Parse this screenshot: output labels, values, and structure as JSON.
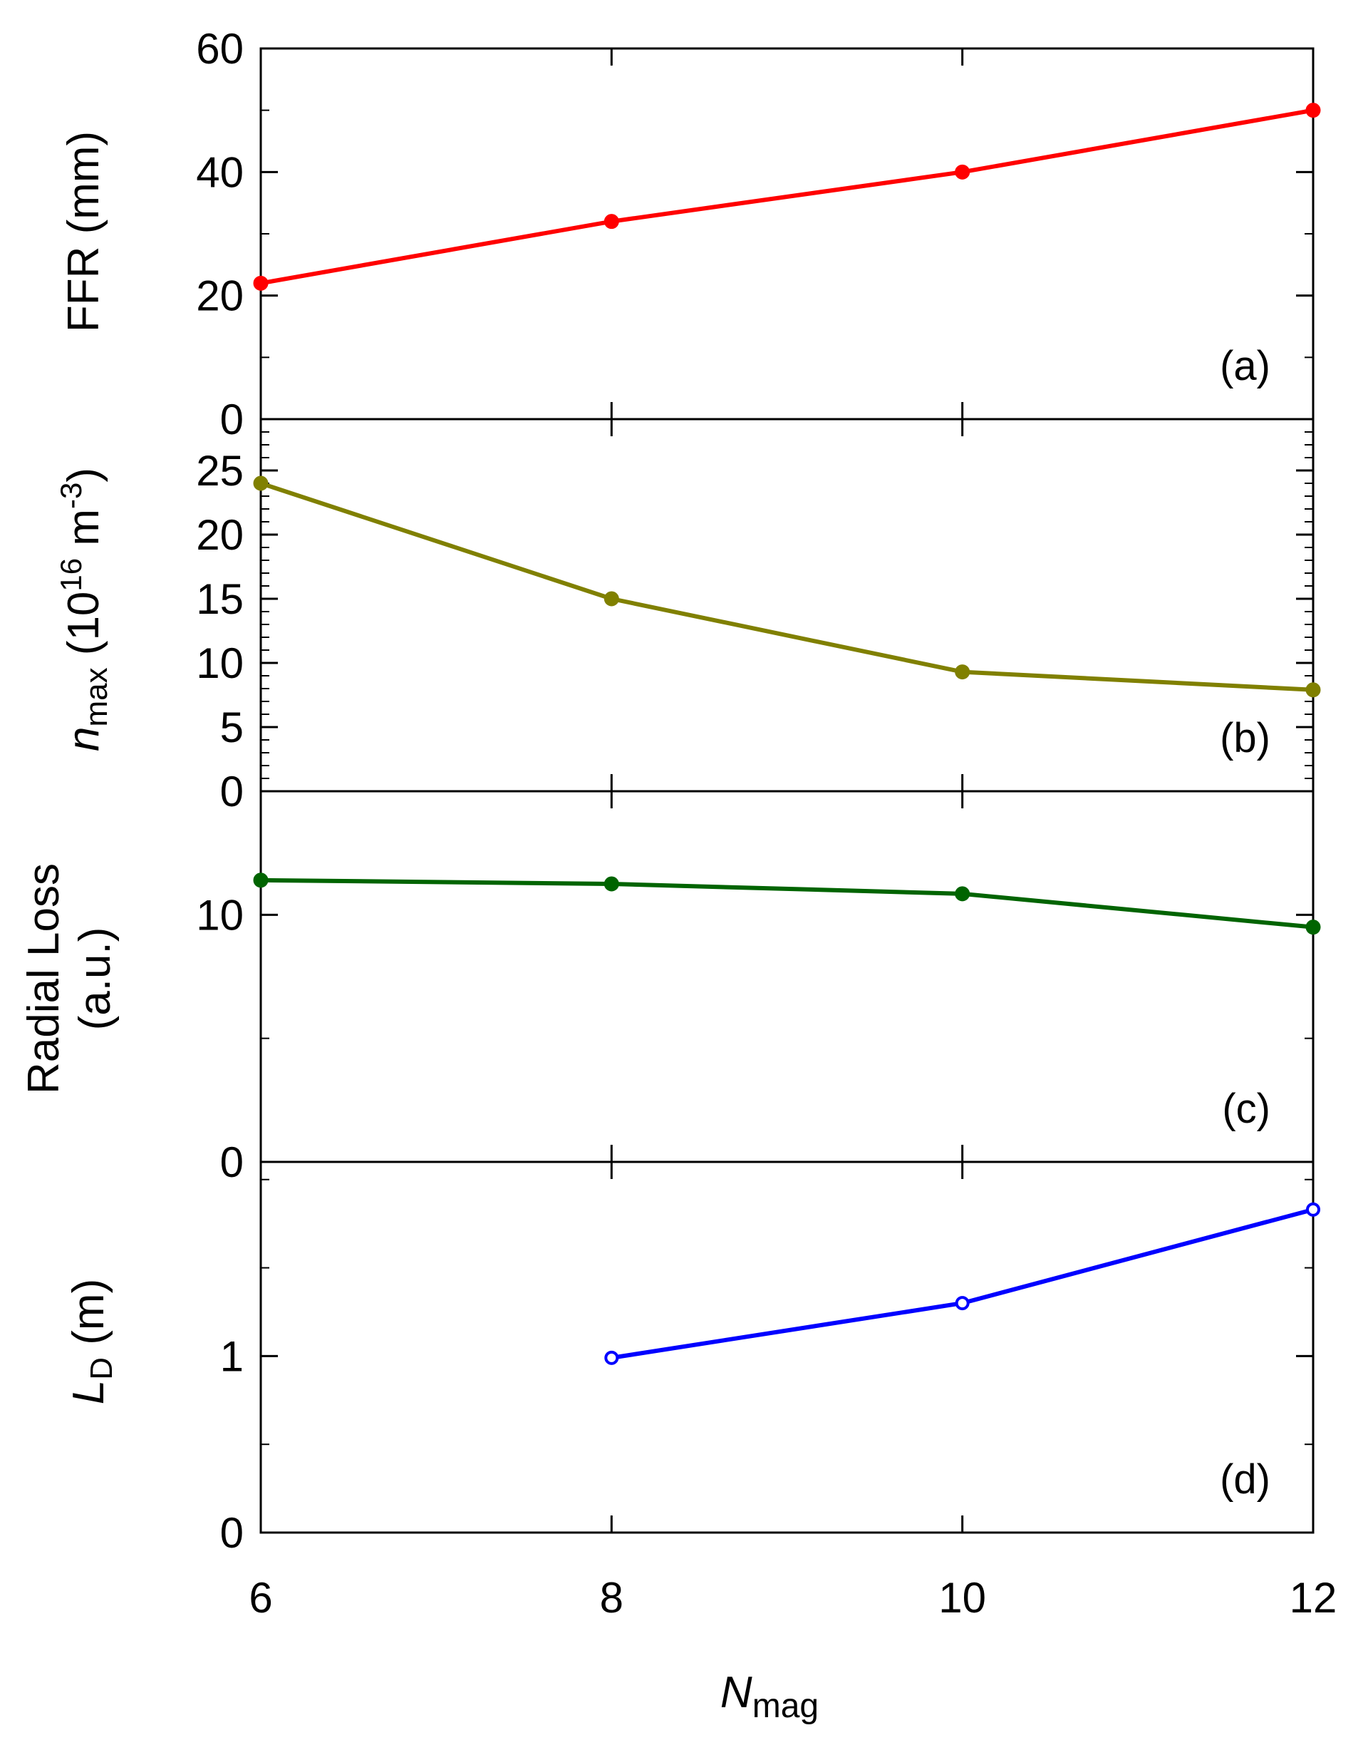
{
  "chart_data": {
    "type": "line",
    "layout": "four vertically stacked panels sharing the x-axis",
    "x_axis": {
      "variable": "N",
      "subscript": "mag",
      "categories": [
        6,
        8,
        10,
        12
      ],
      "tick_labels": [
        "6",
        "8",
        "10",
        "12"
      ],
      "xlim": [
        6,
        12
      ]
    },
    "panels": [
      {
        "tag": "(a)",
        "ylabel": "FFR (mm)",
        "ylim": [
          0,
          60
        ],
        "ytick_labels": [
          "0",
          "20",
          "40",
          "60"
        ],
        "color": "#ff0000",
        "marker": "filled-circle",
        "series": [
          {
            "name": "FFR",
            "x": [
              6,
              8,
              10,
              12
            ],
            "values": [
              22,
              32,
              40,
              50
            ]
          }
        ]
      },
      {
        "tag": "(b)",
        "ylabel_var": "n",
        "ylabel_sub": "max",
        "ylabel_rest": " (10",
        "ylabel_exp": "16",
        "ylabel_unit": " m",
        "ylabel_unit_exp": "-3",
        "ylabel_close": ")",
        "ylim": [
          0,
          29
        ],
        "ytick_labels": [
          "0",
          "5",
          "10",
          "15",
          "20",
          "25"
        ],
        "color": "#808000",
        "marker": "filled-circle",
        "series": [
          {
            "name": "n_max",
            "x": [
              6,
              8,
              10,
              12
            ],
            "values": [
              24,
              15,
              9.3,
              7.9
            ]
          }
        ]
      },
      {
        "tag": "(c)",
        "ylabel_line1": "Radial Loss",
        "ylabel_line2": "(a.u.)",
        "ylim": [
          0,
          15
        ],
        "ytick_labels": [
          "0",
          "10"
        ],
        "color": "#006400",
        "marker": "filled-circle",
        "series": [
          {
            "name": "Radial Loss",
            "x": [
              6,
              8,
              10,
              12
            ],
            "values": [
              11.4,
              11.25,
              10.85,
              9.5
            ]
          }
        ]
      },
      {
        "tag": "(d)",
        "ylabel_var": "L",
        "ylabel_sub": "D",
        "ylabel_rest": " (m)",
        "ylim": [
          0,
          2.1
        ],
        "ytick_labels": [
          "0",
          "1"
        ],
        "color": "#0000ff",
        "marker": "circle",
        "series": [
          {
            "name": "L_D",
            "x": [
              8,
              10,
              12
            ],
            "values": [
              0.99,
              1.3,
              1.83
            ]
          }
        ]
      }
    ]
  }
}
